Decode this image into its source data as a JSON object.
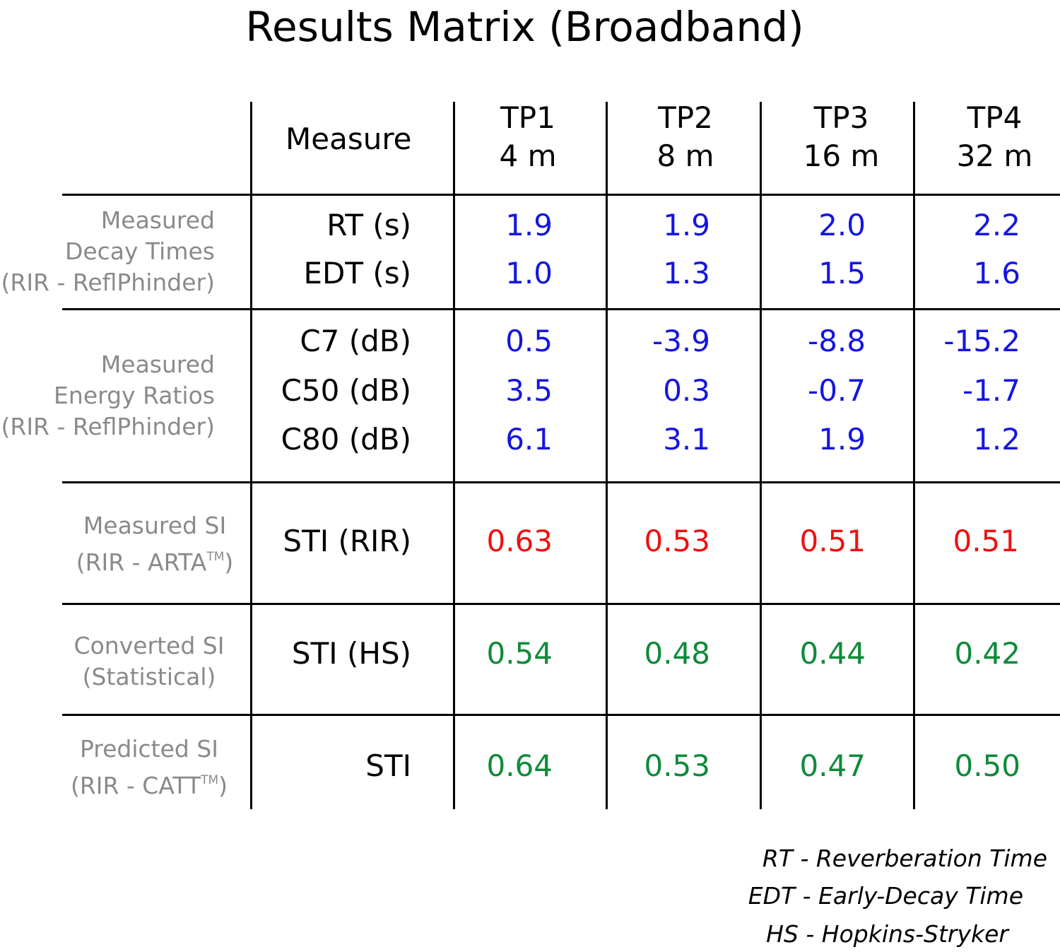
{
  "title": "Results Matrix (Broadband)",
  "header": {
    "measure_label": "Measure",
    "test_points": [
      {
        "name": "TP1",
        "distance": "4 m"
      },
      {
        "name": "TP2",
        "distance": "8 m"
      },
      {
        "name": "TP3",
        "distance": "16 m"
      },
      {
        "name": "TP4",
        "distance": "32 m"
      }
    ]
  },
  "groups": [
    {
      "lines": [
        "Measured",
        "Decay Times",
        "(RIR - ReflPhinder)"
      ]
    },
    {
      "lines": [
        "Measured",
        "Energy Ratios",
        "(RIR - ReflPhinder)"
      ]
    },
    {
      "lines": [
        "Measured SI"
      ],
      "source_prefix": "(RIR - ARTA",
      "source_sup": "TM",
      "source_suffix": ")"
    },
    {
      "lines": [
        "Converted SI",
        "(Statistical)"
      ]
    },
    {
      "lines": [
        "Predicted SI"
      ],
      "source_prefix": "(RIR - CATT",
      "source_sup": "TM",
      "source_suffix": ")"
    }
  ],
  "rows": [
    {
      "measure": "RT (s)",
      "values": [
        "1.9",
        "1.9",
        "2.0",
        "2.2"
      ]
    },
    {
      "measure": "EDT (s)",
      "values": [
        "1.0",
        "1.3",
        "1.5",
        "1.6"
      ]
    },
    {
      "measure": "C7 (dB)",
      "values": [
        "0.5",
        "-3.9",
        "-8.8",
        "-15.2"
      ]
    },
    {
      "measure": "C50 (dB)",
      "values": [
        "3.5",
        "0.3",
        "-0.7",
        "-1.7"
      ]
    },
    {
      "measure": "C80 (dB)",
      "values": [
        "6.1",
        "3.1",
        "1.9",
        "1.2"
      ]
    },
    {
      "measure": "STI (RIR)",
      "values": [
        "0.63",
        "0.53",
        "0.51",
        "0.51"
      ]
    },
    {
      "measure": "STI (HS)",
      "values": [
        "0.54",
        "0.48",
        "0.44",
        "0.42"
      ]
    },
    {
      "measure": "STI",
      "values": [
        "0.64",
        "0.53",
        "0.47",
        "0.50"
      ]
    }
  ],
  "colors": {
    "measured": "#1515e0",
    "sti_measured": "#ee1111",
    "sti_other": "#0f8a3a",
    "group_label": "#8a8a8a"
  },
  "legend": [
    "RT - Reverberation Time",
    "EDT - Early-Decay Time",
    "HS - Hopkins-Stryker"
  ]
}
